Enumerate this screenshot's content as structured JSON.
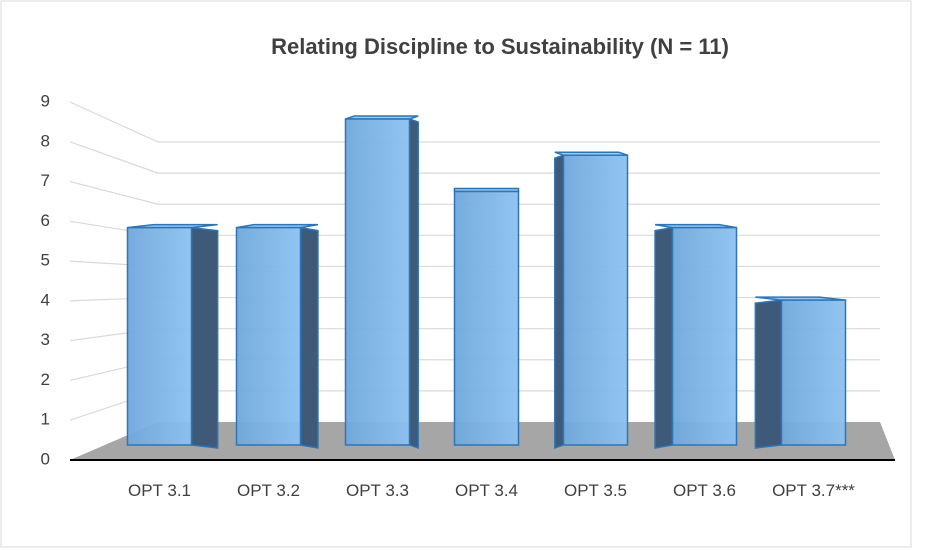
{
  "chart_data": {
    "type": "bar",
    "title": "Relating Discipline to Sustainability (N = 11)",
    "categories": [
      "OPT 3.1",
      "OPT 3.2",
      "OPT 3.3",
      "OPT 3.4",
      "OPT 3.5",
      "OPT 3.6",
      "OPT 3.7***"
    ],
    "values": [
      6,
      6,
      9,
      7,
      8,
      6,
      4
    ],
    "color": "#6fa8dc",
    "ylim": [
      0,
      9
    ],
    "yticks": [
      0,
      1,
      2,
      3,
      4,
      5,
      6,
      7,
      8,
      9
    ],
    "grid": true
  }
}
